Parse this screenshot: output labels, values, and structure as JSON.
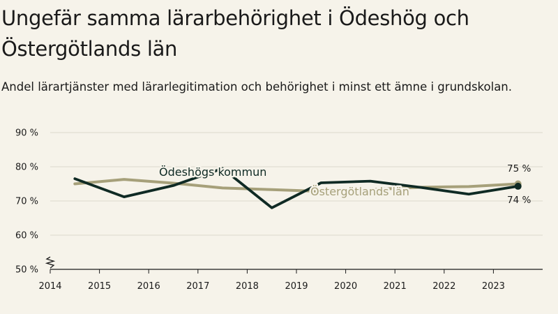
{
  "title": "Ungefär samma lärarbehörighet i Ödeshög och Östergötlands län",
  "subtitle": "Andel lärartjänster med lärarlegitimation och behörighet i minst ett ämne i grundskolan.",
  "colors": {
    "background": "#f6f3ea",
    "kommun": "#0f2a24",
    "lan": "#a6a07a",
    "grid": "#dcd8cc",
    "axis": "#1a1a1a"
  },
  "chart_data": {
    "type": "line",
    "x_ticks": [
      "2014",
      "2015",
      "2016",
      "2017",
      "2018",
      "2019",
      "2020",
      "2021",
      "2022",
      "2023"
    ],
    "y_ticks": [
      "50 %",
      "60 %",
      "70 %",
      "80 %",
      "90 %"
    ],
    "ylim": [
      50,
      90
    ],
    "xlim": [
      2014,
      2024
    ],
    "axis_break": true,
    "series": [
      {
        "name": "Ödeshögs kommun",
        "end_label": "74 %",
        "x": [
          2014.5,
          2015.5,
          2016.5,
          2017.5,
          2018.5,
          2019.5,
          2020.5,
          2021.5,
          2022.5,
          2023.5
        ],
        "values": [
          76.5,
          71.2,
          74.5,
          79.5,
          68.0,
          75.3,
          75.8,
          74.0,
          72.0,
          74.3
        ]
      },
      {
        "name": "Östergötlands län",
        "end_label": "75 %",
        "x": [
          2014.5,
          2015.5,
          2016.5,
          2017.5,
          2018.5,
          2019.5,
          2020.5,
          2021.5,
          2022.5,
          2023.5
        ],
        "values": [
          75.0,
          76.3,
          75.2,
          73.8,
          73.3,
          72.8,
          73.3,
          74.0,
          74.2,
          75.0
        ]
      }
    ]
  }
}
